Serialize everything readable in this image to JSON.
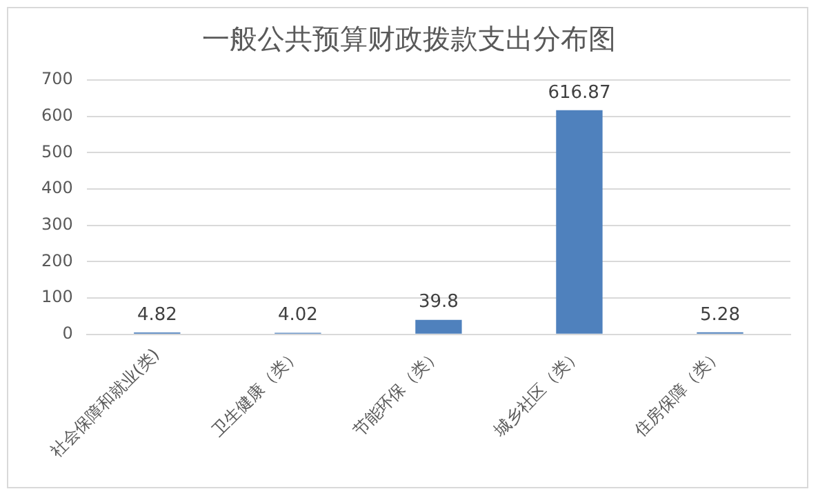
{
  "chart_data": {
    "type": "bar",
    "title": "一般公共预算财政拨款支出分布图",
    "categories": [
      "社会保障和就业(类)",
      "卫生健康（类）",
      "节能环保（类）",
      "城乡社区（类）",
      "住房保障（类）"
    ],
    "values": [
      4.82,
      4.02,
      39.8,
      616.87,
      5.28
    ],
    "color": "#4f81bd",
    "ylim": [
      0,
      700
    ],
    "yticks": [
      0,
      100,
      200,
      300,
      400,
      500,
      600,
      700
    ],
    "grid": "y",
    "data_labels": true,
    "legend": false
  }
}
